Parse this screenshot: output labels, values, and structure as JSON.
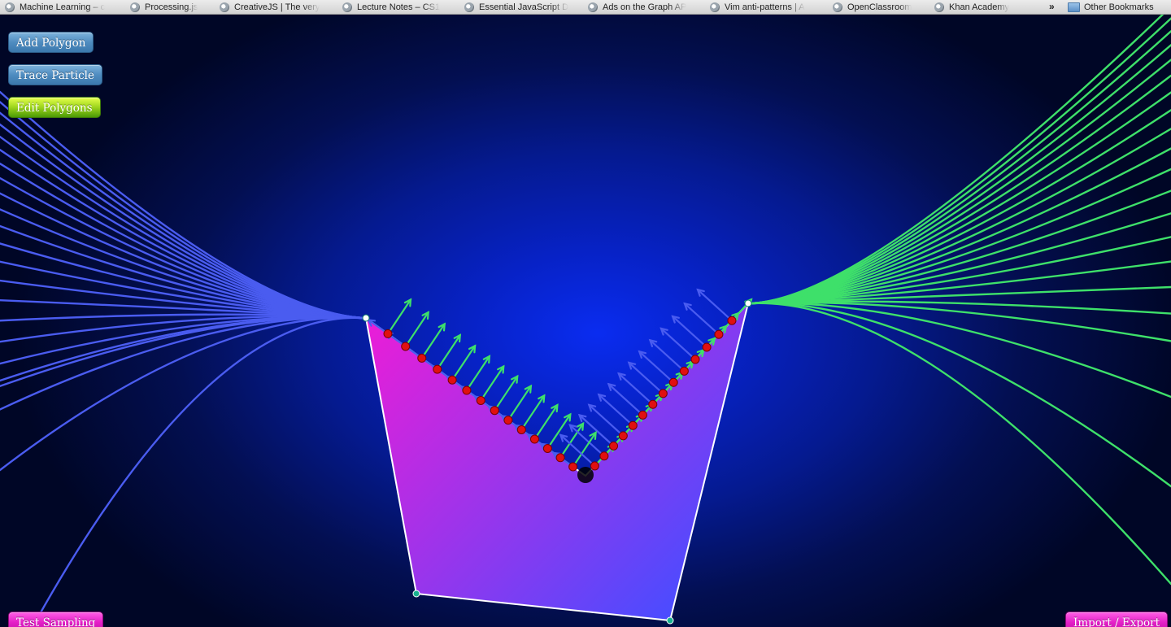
{
  "bookmarks_bar": {
    "items": [
      {
        "label": "Machine Learning – c",
        "icon": "globe-icon"
      },
      {
        "label": "Processing.js",
        "icon": "globe-icon"
      },
      {
        "label": "CreativeJS | The very",
        "icon": "globe-icon"
      },
      {
        "label": "Lecture Notes – CS1",
        "icon": "globe-icon"
      },
      {
        "label": "Essential JavaScript D",
        "icon": "globe-icon"
      },
      {
        "label": "Ads on the Graph AP",
        "icon": "globe-icon"
      },
      {
        "label": "Vim anti-patterns | A",
        "icon": "globe-icon"
      },
      {
        "label": "OpenClassroom",
        "icon": "globe-icon"
      },
      {
        "label": "Khan Academy",
        "icon": "globe-icon"
      }
    ],
    "overflow_label": "»",
    "other_bookmarks_label": "Other Bookmarks"
  },
  "toolbar": {
    "add_polygon_label": "Add Polygon",
    "trace_particle_label": "Trace Particle",
    "edit_polygons_label": "Edit Polygons",
    "test_sampling_label": "Test Sampling",
    "import_export_label": "Import / Export"
  },
  "scene": {
    "background_center": "#0a2cf0",
    "background_edge": "#000626",
    "left_ray_color": "#4a5cf0",
    "right_ray_color": "#3ee06a",
    "polygon_gradient": [
      "#e81ed8",
      "#4a4cff"
    ],
    "polygon_outline": "#ffffff",
    "sample_point_color": "#e01010",
    "active_button_state": "edit_polygons"
  }
}
